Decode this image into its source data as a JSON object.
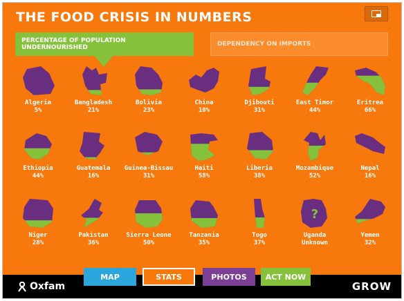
{
  "title": "THE FOOD CRISIS IN NUMBERS",
  "tabs": {
    "percentage": "PERCENTAGE OF POPULATION UNDERNOURISHED",
    "dependency": "DEPENDENCY ON IMPORTS"
  },
  "countries": [
    {
      "name": "Algeria",
      "value": "5%",
      "fill": 0.05
    },
    {
      "name": "Bangladesh",
      "value": "21%",
      "fill": 0.21
    },
    {
      "name": "Bolivia",
      "value": "23%",
      "fill": 0.23
    },
    {
      "name": "China",
      "value": "10%",
      "fill": 0.1
    },
    {
      "name": "Djibouti",
      "value": "31%",
      "fill": 0.31
    },
    {
      "name": "East Timor",
      "value": "44%",
      "fill": 0.44
    },
    {
      "name": "Eritrea",
      "value": "66%",
      "fill": 0.66
    },
    {
      "name": "Ethiopia",
      "value": "44%",
      "fill": 0.44
    },
    {
      "name": "Guatemala",
      "value": "16%",
      "fill": 0.16
    },
    {
      "name": "Guinea-Bissau",
      "value": "31%",
      "fill": 0.31
    },
    {
      "name": "Haiti",
      "value": "58%",
      "fill": 0.58
    },
    {
      "name": "Liberia",
      "value": "38%",
      "fill": 0.38
    },
    {
      "name": "Mozambique",
      "value": "52%",
      "fill": 0.52
    },
    {
      "name": "Nepal",
      "value": "16%",
      "fill": 0.16
    },
    {
      "name": "Niger",
      "value": "28%",
      "fill": 0.28
    },
    {
      "name": "Pakistan",
      "value": "36%",
      "fill": 0.36
    },
    {
      "name": "Sierra Leone",
      "value": "50%",
      "fill": 0.5
    },
    {
      "name": "Tanzania",
      "value": "35%",
      "fill": 0.35
    },
    {
      "name": "Togo",
      "value": "37%",
      "fill": 0.37
    },
    {
      "name": "Uganda",
      "value": "Unknown",
      "fill": 0,
      "unknown": true
    },
    {
      "name": "Yemen",
      "value": "32%",
      "fill": 0.32
    }
  ],
  "colors": {
    "background": "#f7780d",
    "nourished": "#6a2e80",
    "undernourished": "#86c13c"
  },
  "footer": {
    "logo": "Oxfam",
    "buttons": {
      "map": "MAP",
      "stats": "STATS",
      "photos": "PHOTOS",
      "act": "ACT NOW"
    },
    "brand": "GROW"
  }
}
